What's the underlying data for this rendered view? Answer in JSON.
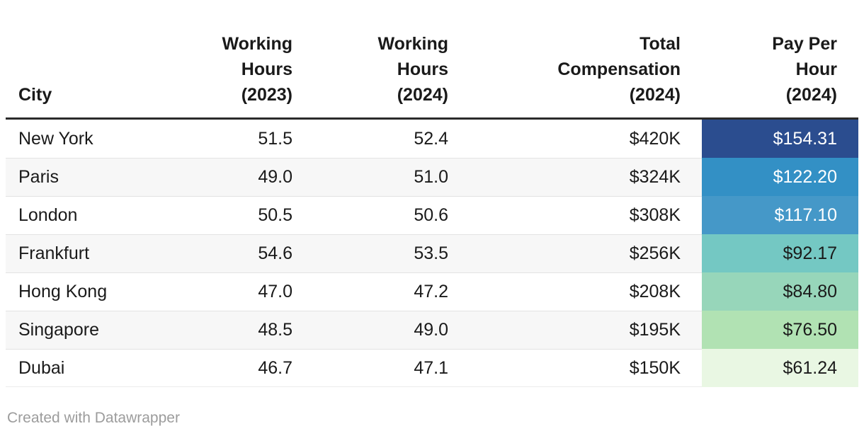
{
  "table": {
    "columns": [
      {
        "key": "city",
        "label": "City"
      },
      {
        "key": "wh2023",
        "label": "Working Hours (2023)"
      },
      {
        "key": "wh2024",
        "label": "Working Hours (2024)"
      },
      {
        "key": "comp",
        "label": "Total Compensation (2024)"
      },
      {
        "key": "pay",
        "label": "Pay Per Hour (2024)"
      }
    ],
    "rows": [
      {
        "city": "New York",
        "wh2023": "51.5",
        "wh2024": "52.4",
        "comp": "$420K",
        "pay": "$154.31",
        "pay_bg": "#2b4d8f",
        "pay_text": "#ffffff"
      },
      {
        "city": "Paris",
        "wh2023": "49.0",
        "wh2024": "51.0",
        "comp": "$324K",
        "pay": "$122.20",
        "pay_bg": "#3390c5",
        "pay_text": "#ffffff"
      },
      {
        "city": "London",
        "wh2023": "50.5",
        "wh2024": "50.6",
        "comp": "$308K",
        "pay": "$117.10",
        "pay_bg": "#4598c8",
        "pay_text": "#ffffff"
      },
      {
        "city": "Frankfurt",
        "wh2023": "54.6",
        "wh2024": "53.5",
        "comp": "$256K",
        "pay": "$92.17",
        "pay_bg": "#74c8c3",
        "pay_text": "#1a1a1a"
      },
      {
        "city": "Hong Kong",
        "wh2023": "47.0",
        "wh2024": "47.2",
        "comp": "$208K",
        "pay": "$84.80",
        "pay_bg": "#97d6ba",
        "pay_text": "#1a1a1a"
      },
      {
        "city": "Singapore",
        "wh2023": "48.5",
        "wh2024": "49.0",
        "comp": "$195K",
        "pay": "$76.50",
        "pay_bg": "#b1e2b3",
        "pay_text": "#1a1a1a"
      },
      {
        "city": "Dubai",
        "wh2023": "46.7",
        "wh2024": "47.1",
        "comp": "$150K",
        "pay": "$61.24",
        "pay_bg": "#e9f7e3",
        "pay_text": "#1a1a1a"
      }
    ]
  },
  "footer": {
    "credit": "Created with Datawrapper"
  },
  "colors": {
    "header_rule": "#2b2b2b",
    "row_separator": "#e3e3e3",
    "alt_row_bg": "#f7f7f7",
    "credit_text": "#9c9c9c"
  },
  "chart_data": {
    "type": "table",
    "title": "",
    "columns": [
      "City",
      "Working Hours (2023)",
      "Working Hours (2024)",
      "Total Compensation (2024)",
      "Pay Per Hour (2024)"
    ],
    "rows": [
      [
        "New York",
        51.5,
        52.4,
        "$420K",
        154.31
      ],
      [
        "Paris",
        49.0,
        51.0,
        "$324K",
        122.2
      ],
      [
        "London",
        50.5,
        50.6,
        "$308K",
        117.1
      ],
      [
        "Frankfurt",
        54.6,
        53.5,
        "$256K",
        92.17
      ],
      [
        "Hong Kong",
        47.0,
        47.2,
        "$208K",
        84.8
      ],
      [
        "Singapore",
        48.5,
        49.0,
        "$195K",
        76.5
      ],
      [
        "Dubai",
        46.7,
        47.1,
        "$150K",
        61.24
      ]
    ],
    "color_scale": {
      "applies_to": "Pay Per Hour (2024)",
      "palette": [
        "#2b4d8f",
        "#3390c5",
        "#4598c8",
        "#74c8c3",
        "#97d6ba",
        "#b1e2b3",
        "#e9f7e3"
      ],
      "direction": "high-to-low"
    },
    "credit": "Created with Datawrapper"
  }
}
